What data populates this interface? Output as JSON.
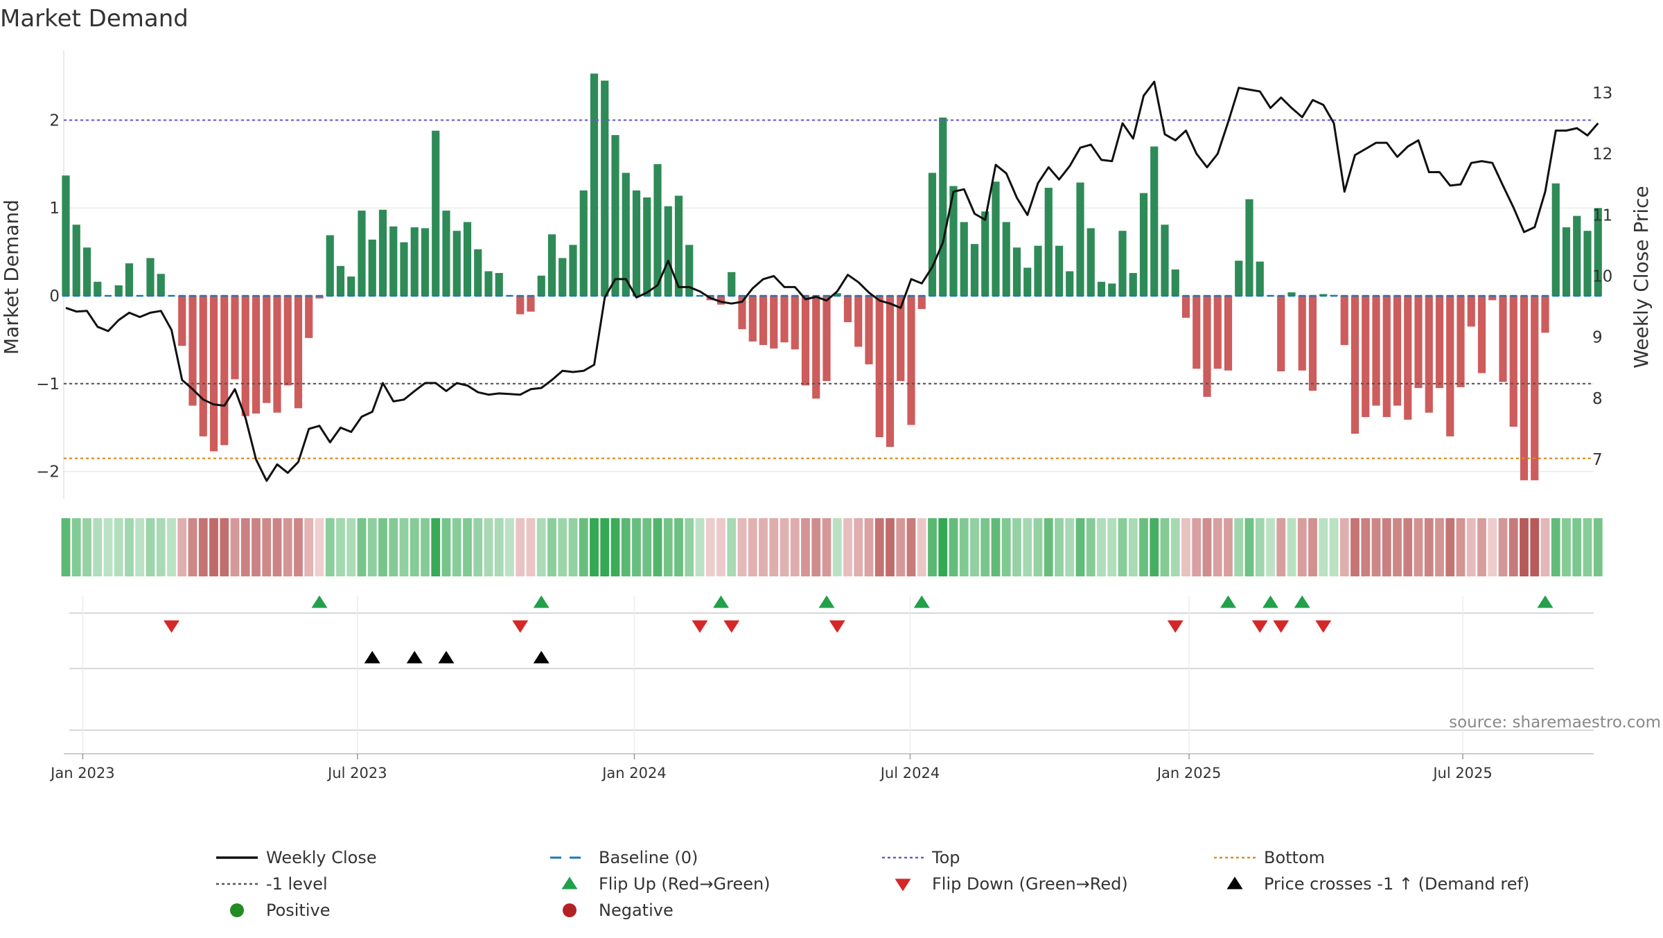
{
  "chart_data": {
    "type": "bar",
    "title": "Market Demand",
    "ylabel_left": "Market Demand",
    "ylabel_right": "Weekly Close Price",
    "ylim_left": [
      -2.35,
      2.8
    ],
    "ylim_right": [
      6.3,
      13.7
    ],
    "yticks_left": [
      {
        "v": 2,
        "label": "2"
      },
      {
        "v": 1,
        "label": "1"
      },
      {
        "v": 0,
        "label": "0"
      },
      {
        "v": -1,
        "label": "−1"
      },
      {
        "v": -2,
        "label": "−2"
      }
    ],
    "yticks_right": [
      {
        "v": 13,
        "label": "13"
      },
      {
        "v": 12,
        "label": "12"
      },
      {
        "v": 11,
        "label": "11"
      },
      {
        "v": 10,
        "label": "10"
      },
      {
        "v": 9,
        "label": "9"
      },
      {
        "v": 8,
        "label": "8"
      },
      {
        "v": 7,
        "label": "7"
      }
    ],
    "xticks": [
      {
        "i": 1.6,
        "label": "Jan 2023"
      },
      {
        "i": 27.6,
        "label": "Jul 2023"
      },
      {
        "i": 53.8,
        "label": "Jan 2024"
      },
      {
        "i": 79.9,
        "label": "Jul 2024"
      },
      {
        "i": 106.3,
        "label": "Jan 2025"
      },
      {
        "i": 132.2,
        "label": "Jul 2025"
      }
    ],
    "reference_lines": {
      "top": 2,
      "minus_one": -1,
      "bottom": -1.85,
      "baseline": 0
    },
    "demand": [
      1.37,
      0.81,
      0.55,
      0.16,
      0,
      0.12,
      0.37,
      0,
      0.43,
      0.25,
      0,
      -0.57,
      -1.25,
      -1.6,
      -1.77,
      -1.7,
      -0.95,
      -1.37,
      -1.34,
      -1.22,
      -1.33,
      -1.02,
      -1.28,
      -0.48,
      -0.03,
      0.69,
      0.34,
      0.22,
      0.97,
      0.64,
      0.98,
      0.79,
      0.61,
      0.78,
      0.77,
      1.88,
      0.97,
      0.74,
      0.84,
      0.53,
      0.28,
      0.26,
      0,
      -0.21,
      -0.18,
      0.23,
      0.7,
      0.43,
      0.58,
      1.2,
      2.53,
      2.45,
      1.83,
      1.4,
      1.2,
      1.12,
      1.5,
      1.02,
      1.14,
      0.58,
      0,
      -0.05,
      -0.1,
      0.27,
      -0.38,
      -0.52,
      -0.56,
      -0.6,
      -0.53,
      -0.61,
      -1.02,
      -1.17,
      -0.97,
      0.03,
      -0.3,
      -0.58,
      -0.78,
      -1.61,
      -1.72,
      -0.97,
      -1.47,
      -0.15,
      1.4,
      2.03,
      1.25,
      0.84,
      0.59,
      0.96,
      1.3,
      0.84,
      0.55,
      0.32,
      0.57,
      1.23,
      0.57,
      0.28,
      1.29,
      0.77,
      0.16,
      0.14,
      0.74,
      0.26,
      1.17,
      1.7,
      0.81,
      0.3,
      -0.25,
      -0.83,
      -1.15,
      -0.83,
      -0.85,
      0.4,
      1.1,
      0.39,
      0,
      -0.86,
      0.04,
      -0.85,
      -1.08,
      0.02,
      0.01,
      -0.56,
      -1.57,
      -1.38,
      -1.25,
      -1.38,
      -1.25,
      -1.41,
      -1.05,
      -1.33,
      -1.05,
      -1.6,
      -1.04,
      -0.35,
      -0.88,
      -0.05,
      -0.98,
      -1.49,
      -2.1,
      -2.1,
      -0.42,
      1.28,
      0.78,
      0.91,
      0.74,
      1.0
    ],
    "weekly_close": [
      9.48,
      9.42,
      9.43,
      9.17,
      9.1,
      9.28,
      9.4,
      9.33,
      9.4,
      9.43,
      9.12,
      8.3,
      8.15,
      7.98,
      7.9,
      7.88,
      8.15,
      7.68,
      7.0,
      6.65,
      6.92,
      6.78,
      6.96,
      7.5,
      7.55,
      7.28,
      7.52,
      7.45,
      7.7,
      7.78,
      8.25,
      7.95,
      7.98,
      8.12,
      8.25,
      8.25,
      8.12,
      8.25,
      8.21,
      8.1,
      8.06,
      8.08,
      8.07,
      8.06,
      8.15,
      8.17,
      8.3,
      8.45,
      8.43,
      8.45,
      8.55,
      9.65,
      9.95,
      9.95,
      9.65,
      9.73,
      9.85,
      10.25,
      9.82,
      9.82,
      9.75,
      9.64,
      9.58,
      9.55,
      9.58,
      9.8,
      9.95,
      10.0,
      9.82,
      9.82,
      9.62,
      9.66,
      9.6,
      9.75,
      10.02,
      9.9,
      9.73,
      9.6,
      9.55,
      9.48,
      9.95,
      9.88,
      10.15,
      10.55,
      11.38,
      11.42,
      11.02,
      10.92,
      11.82,
      11.68,
      11.28,
      11.0,
      11.52,
      11.78,
      11.58,
      11.8,
      12.1,
      12.15,
      11.9,
      11.88,
      12.5,
      12.25,
      12.95,
      13.18,
      12.32,
      12.22,
      12.38,
      12.0,
      11.78,
      12.0,
      12.52,
      13.08,
      13.05,
      13.02,
      12.75,
      12.92,
      12.75,
      12.6,
      12.88,
      12.8,
      12.5,
      11.38,
      11.98,
      12.08,
      12.18,
      12.18,
      11.95,
      12.12,
      12.22,
      11.7,
      11.7,
      11.48,
      11.5,
      11.85,
      11.88,
      11.85,
      11.48,
      11.12,
      10.72,
      10.8,
      11.38,
      12.38,
      12.38,
      12.42,
      12.3,
      12.5
    ],
    "flip_up_weeks": [
      24,
      45,
      62,
      72,
      81,
      110,
      114,
      117,
      140
    ],
    "flip_down_weeks": [
      10,
      43,
      60,
      63,
      73,
      105,
      113,
      115,
      119
    ],
    "price_cross_weeks": [
      29,
      33,
      36,
      45
    ],
    "colors": {
      "positive_bar": "#2e8b57",
      "negative_bar": "#cd5c5c",
      "price_line": "#111111",
      "top_line": "#6a5acd",
      "minus_one_line": "#555555",
      "bottom_line": "#e08a1e",
      "baseline": "#1f77b4",
      "flip_up": "#22a04b",
      "flip_down": "#d62728",
      "cross": "#000000",
      "positive_dot": "#228b22",
      "negative_dot": "#b22222"
    },
    "source": "source: sharemaestro.com",
    "legend": [
      {
        "key": "weekly_close",
        "label": "Weekly Close",
        "symbol": "line",
        "color": "#111111"
      },
      {
        "key": "baseline",
        "label": "Baseline (0)",
        "symbol": "dash",
        "color": "#1f77b4"
      },
      {
        "key": "top",
        "label": "Top",
        "symbol": "dot",
        "color": "#6a5acd"
      },
      {
        "key": "bottom",
        "label": "Bottom",
        "symbol": "dot",
        "color": "#e08a1e"
      },
      {
        "key": "minus_one",
        "label": "-1 level",
        "symbol": "dot",
        "color": "#555555"
      },
      {
        "key": "flip_up",
        "label": "Flip Up (Red→Green)",
        "symbol": "tri-up",
        "color": "#22a04b"
      },
      {
        "key": "flip_down",
        "label": "Flip Down (Green→Red)",
        "symbol": "tri-down",
        "color": "#d62728"
      },
      {
        "key": "cross",
        "label": "Price crosses -1 ↑ (Demand ref)",
        "symbol": "tri-up",
        "color": "#000000"
      },
      {
        "key": "positive",
        "label": "Positive",
        "symbol": "circle",
        "color": "#228b22"
      },
      {
        "key": "negative",
        "label": "Negative",
        "symbol": "circle",
        "color": "#b22222"
      }
    ]
  }
}
